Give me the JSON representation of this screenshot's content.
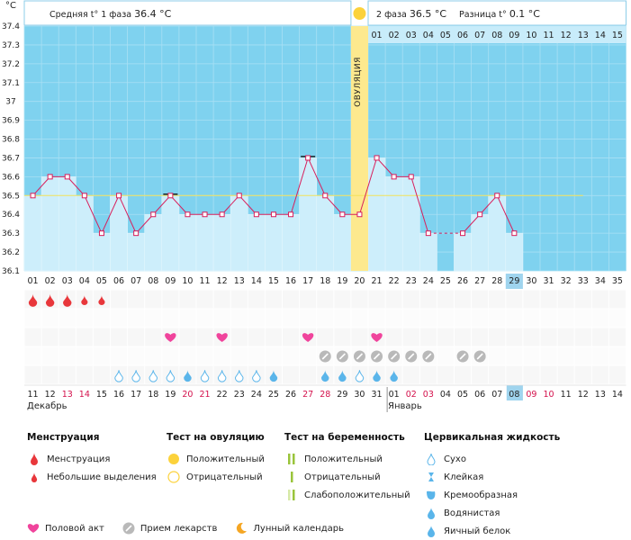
{
  "header": {
    "unit": "°C",
    "phase1_label": "Средняя t° 1 фаза",
    "phase1_value": "36.4 °C",
    "phase2_label": "2 фаза",
    "phase2_value": "36.5 °C",
    "diff_label": "Разница t°",
    "diff_value": "0.1 °C",
    "ovulation_label": "ОВУЛЯЦИЯ"
  },
  "chart_data": {
    "type": "line",
    "ylim": [
      36.1,
      37.4
    ],
    "y_ticks": [
      "36.1",
      "36.2",
      "36.3",
      "36.4",
      "36.5",
      "36.6",
      "36.7",
      "36.8",
      "36.9",
      "37",
      "37.1",
      "37.2",
      "37.3",
      "37.4"
    ],
    "cycle_days": [
      "01",
      "02",
      "03",
      "04",
      "05",
      "06",
      "07",
      "08",
      "09",
      "10",
      "11",
      "12",
      "13",
      "14",
      "15",
      "16",
      "17",
      "18",
      "19",
      "20",
      "21",
      "22",
      "23",
      "24",
      "25",
      "26",
      "27",
      "28",
      "29",
      "30",
      "31",
      "32",
      "33",
      "34",
      "35"
    ],
    "temperatures": [
      36.5,
      36.6,
      36.6,
      36.5,
      36.3,
      36.5,
      36.3,
      36.4,
      36.5,
      36.4,
      36.4,
      36.4,
      36.5,
      36.4,
      36.4,
      36.4,
      36.7,
      36.5,
      36.4,
      36.4,
      36.7,
      36.6,
      36.6,
      36.3,
      null,
      36.3,
      36.4,
      36.5,
      36.3,
      null,
      null,
      null,
      null,
      null,
      null
    ],
    "marked_days": [
      9,
      17
    ],
    "coverline": 36.5,
    "ovulation_day": 20,
    "current_cycle_day": 29,
    "phase2_days": [
      "01",
      "02",
      "03",
      "04",
      "05",
      "06",
      "07",
      "08",
      "09",
      "10",
      "11",
      "12",
      "13",
      "14",
      "15"
    ],
    "calendar_dates": [
      "11",
      "12",
      "13",
      "14",
      "15",
      "16",
      "17",
      "18",
      "19",
      "20",
      "21",
      "22",
      "23",
      "24",
      "25",
      "26",
      "27",
      "28",
      "29",
      "30",
      "31",
      "01",
      "02",
      "03",
      "04",
      "05",
      "06",
      "07",
      "08",
      "09",
      "10",
      "11",
      "12",
      "13",
      "14"
    ],
    "weekend_dates": [
      2,
      3,
      9,
      10,
      16,
      17,
      22,
      23,
      29,
      30
    ],
    "today_index": 28,
    "month_labels": [
      {
        "label": "Декабрь",
        "day": 1
      },
      {
        "label": "Январь",
        "day": 22
      }
    ],
    "menstruation": {
      "1": "big",
      "2": "big",
      "3": "big",
      "4": "small",
      "5": "small"
    },
    "intercourse_days": [
      9,
      12,
      17,
      21
    ],
    "medication_days": [
      18,
      19,
      20,
      21,
      22,
      23,
      24,
      26,
      27
    ],
    "cervical": {
      "6": "dry",
      "7": "dry",
      "8": "dry",
      "9": "dry",
      "10": "eggwhite",
      "11": "dry",
      "12": "dry",
      "13": "dry",
      "14": "dry",
      "15": "eggwhite",
      "18": "eggwhite",
      "19": "eggwhite",
      "20": "dry",
      "21": "eggwhite",
      "22": "eggwhite"
    },
    "colors": {
      "plot_bg": "#7fd2ef",
      "bar_fill": "#cdeefb",
      "line": "#d81e5b",
      "ovulation": "#fde98e",
      "menstruation": "#e8373b",
      "heart": "#f0449c",
      "pill": "#b9b9b9",
      "drop": "#5ab5ea",
      "weekend_text": "#d4114c",
      "today_bg": "#9fd4ee"
    }
  },
  "legend": {
    "menstruation": {
      "title": "Менструация",
      "items": [
        "Менструация",
        "Небольшие выделения"
      ]
    },
    "ovulation_test": {
      "title": "Тест на овуляцию",
      "items": [
        "Положительный",
        "Отрицательный"
      ]
    },
    "pregnancy_test": {
      "title": "Тест на беременность",
      "items": [
        "Положительный",
        "Отрицательный",
        "Слабоположительный"
      ]
    },
    "cervical": {
      "title": "Цервикальная жидкость",
      "items": [
        "Сухо",
        "Клейкая",
        "Кремообразная",
        "Водянистая",
        "Яичный белок"
      ]
    },
    "bottom": [
      "Половой акт",
      "Прием лекарств",
      "Лунный календарь"
    ]
  }
}
